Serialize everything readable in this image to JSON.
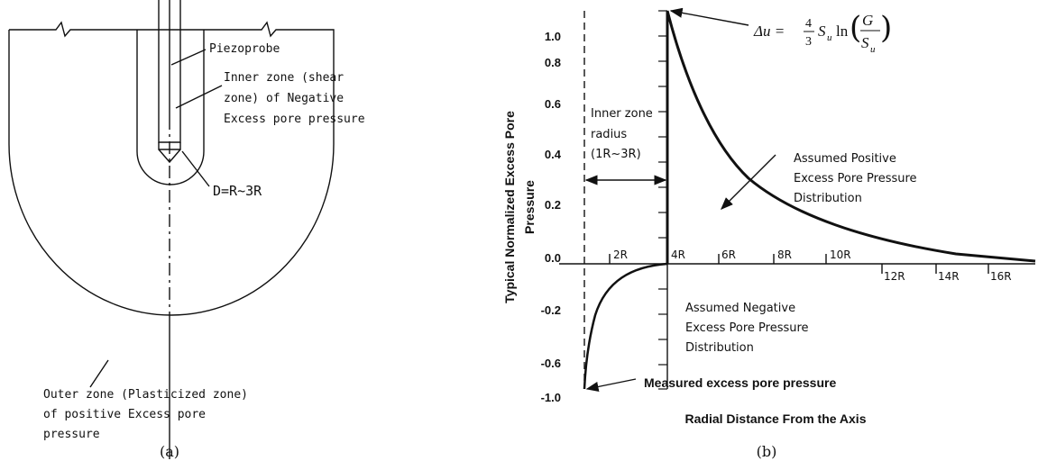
{
  "panel_a": {
    "probe_label": "Piezoprobe",
    "inner_zone": [
      "Inner zone (shear",
      "zone) of Negative",
      "Excess pore pressure"
    ],
    "distance": "D=R~3R",
    "outer_zone": [
      "Outer zone (Plasticized zone)",
      "of positive Excess pore",
      "pressure"
    ],
    "caption": "(a)"
  },
  "panel_b": {
    "y_title": [
      "Typical Normalized Excess Pore",
      "Pressure"
    ],
    "x_title": "Radial Distance From the Axis",
    "y_tick_labels": [
      "1.0",
      "0.8",
      "0.6",
      "0.4",
      "0.2",
      "0.0",
      "-0.2",
      "-0.6",
      "-1.0"
    ],
    "x_tick_labels": [
      "2R",
      "4R",
      "6R",
      "8R",
      "10R",
      "12R",
      "14R",
      "16R"
    ],
    "formula": {
      "lhs": "Δu =",
      "num": "4",
      "den": "3",
      "s": "S",
      "sub": "u",
      "ln": "ln",
      "g": "G"
    },
    "positive": [
      "Assumed Positive",
      "Excess Pore Pressure",
      "Distribution"
    ],
    "inner_radius": [
      "Inner zone",
      "radius",
      "(1R~3R)"
    ],
    "negative": [
      "Assumed Negative",
      "Excess Pore Pressure",
      "Distribution"
    ],
    "measured": "Measured excess pore pressure",
    "caption": "(b)"
  }
}
